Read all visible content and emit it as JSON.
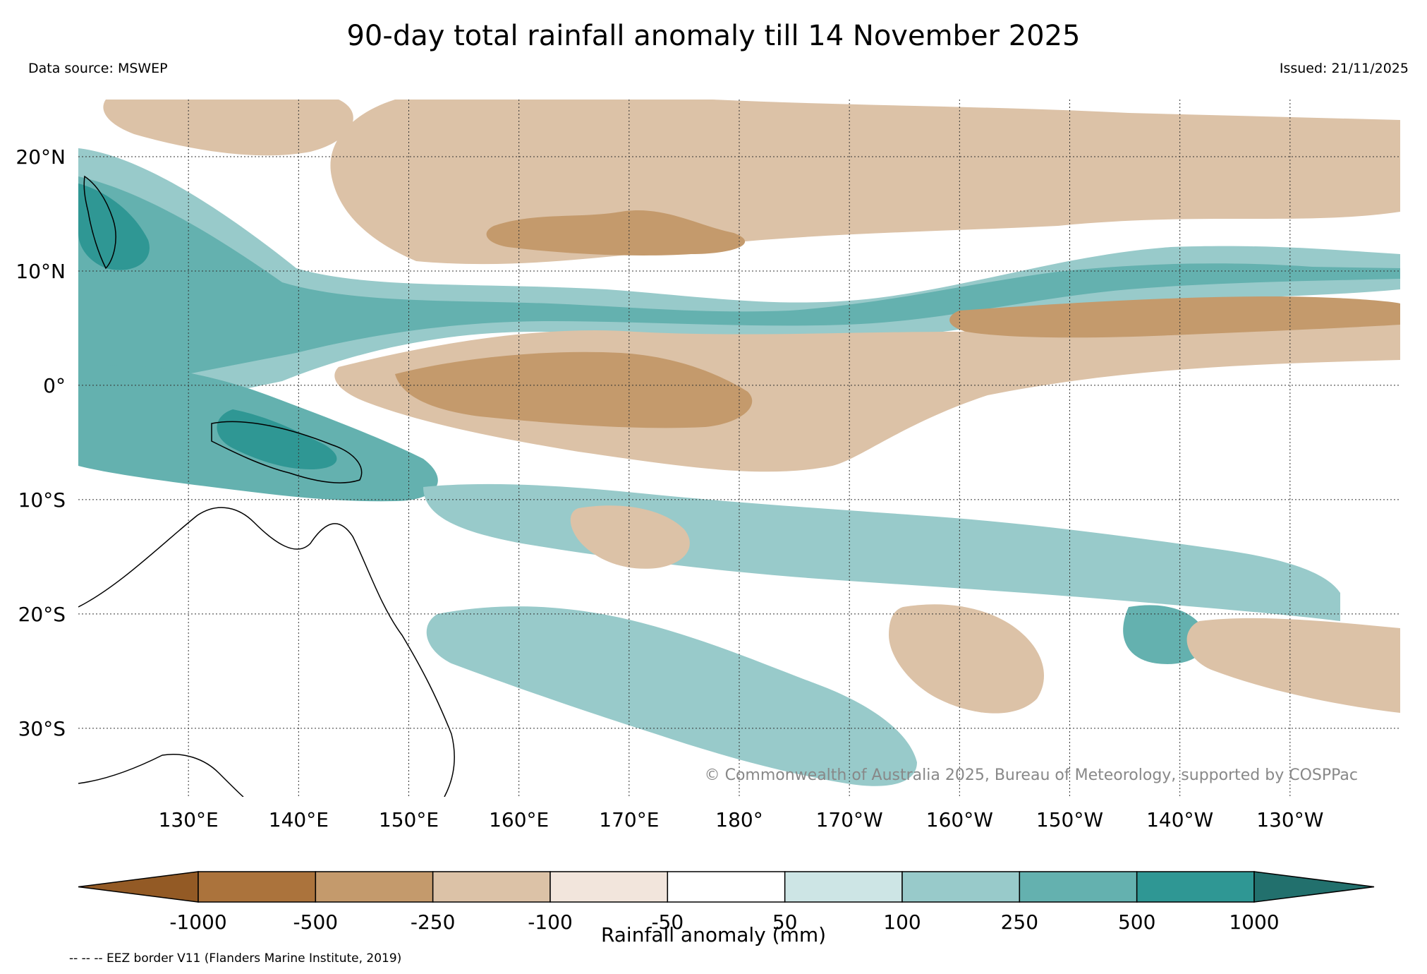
{
  "header": {
    "title": "90-day total rainfall anomaly till 14 November 2025",
    "data_source": "Data source: MSWEP",
    "issued": "Issued: 21/11/2025"
  },
  "map": {
    "lat_labels": [
      "20°N",
      "10°N",
      "0°",
      "10°S",
      "20°S",
      "30°S"
    ],
    "lat_values": [
      20,
      10,
      0,
      -10,
      -20,
      -30
    ],
    "lon_labels": [
      "130°E",
      "140°E",
      "150°E",
      "160°E",
      "170°E",
      "180°",
      "170°W",
      "160°W",
      "150°W",
      "140°W",
      "130°W"
    ],
    "lon_values": [
      130,
      140,
      150,
      160,
      170,
      180,
      190,
      200,
      210,
      220,
      230
    ],
    "extent": {
      "lon_min": 120,
      "lon_max": 240,
      "lat_min": -36,
      "lat_max": 25
    },
    "copyright": "© Commonwealth of Australia 2025, Bureau of Meteorology, supported by COSPPac"
  },
  "colorbar": {
    "label": "Rainfall anomaly (mm)",
    "ticks": [
      "-1000",
      "-500",
      "-250",
      "-100",
      "-50",
      "50",
      "100",
      "250",
      "500",
      "1000"
    ],
    "colors": [
      "#935a25",
      "#ab733c",
      "#c49a6c",
      "#dcc2a7",
      "#f2e5dc",
      "#ffffff",
      "#cde5e5",
      "#98caca",
      "#64b1af",
      "#2f9794",
      "#22706d"
    ]
  },
  "footer": {
    "eez_note": "-- -- -- EEZ border V11 (Flanders Marine Institute, 2019)"
  }
}
